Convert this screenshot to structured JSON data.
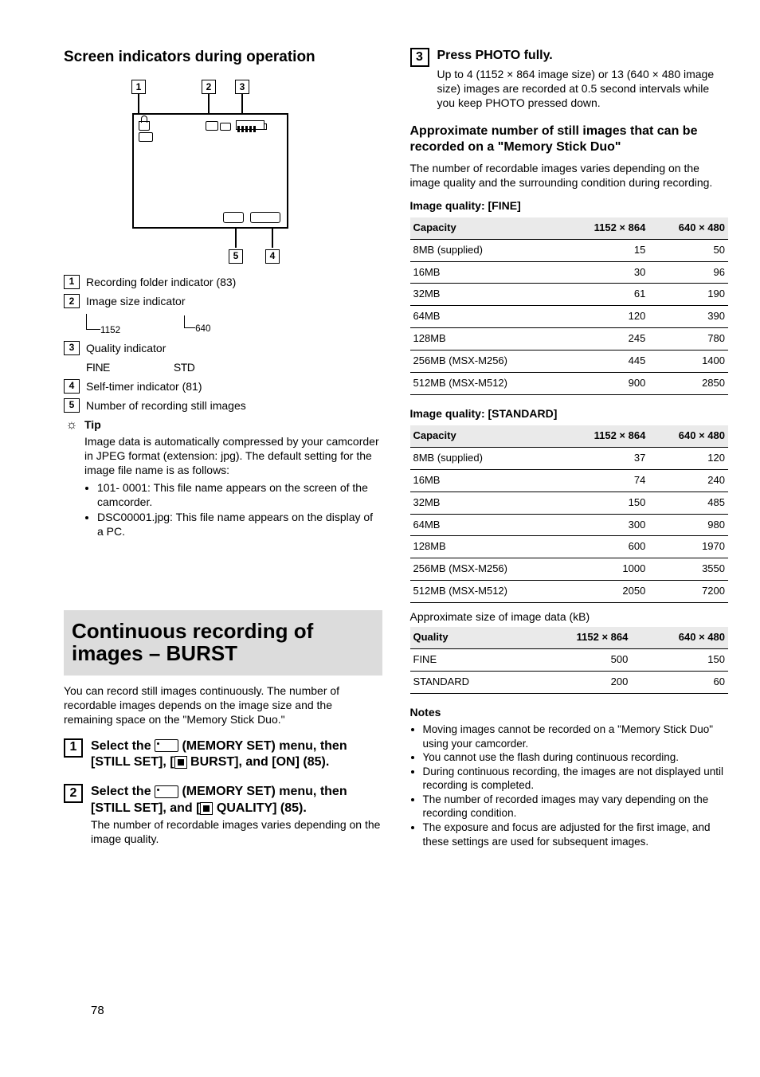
{
  "heading": "Screen indicators during operation",
  "diagram": {
    "callouts": {
      "1": "1",
      "2": "2",
      "3": "3",
      "4": "4",
      "5": "5"
    }
  },
  "list": {
    "1": "Recording folder indicator (83)",
    "2": "Image size indicator",
    "2a": "1152",
    "2b": "640",
    "3": "Quality indicator",
    "3a": "FINE",
    "3b": "STD",
    "4": "Self-timer indicator (81)",
    "5": "Number of recording still images"
  },
  "tip_label": "Tip",
  "tip_body": "Image data is automatically compressed by your camcorder in JPEG format (extension: jpg). The default setting for the image file name is as follows:",
  "tip_bullets": [
    "101- 0001: This file name appears on the screen of the camcorder.",
    "DSC00001.jpg: This file name appears on the display of a PC."
  ],
  "section2_title": "Continuous recording of images – BURST",
  "section2_intro": "You can record still images continuously. The number of recordable images depends on the image size and the remaining space on the \"Memory Stick Duo.\"",
  "steps": [
    {
      "n": "1",
      "bold": "Select the ",
      "icon": "ms",
      "bold2": " (MEMORY SET) menu, then [STILL SET], [",
      "icon2": "sq",
      "bold3": " BURST], and [ON] (85)."
    },
    {
      "n": "2",
      "bold": "Select the ",
      "icon": "ms",
      "bold2": " (MEMORY SET) menu, then [STILL SET], and [",
      "icon2": "sq",
      "bold3": " QUALITY] (85).",
      "desc": "The number of recordable images varies depending on the image quality."
    }
  ],
  "step3": {
    "n": "3",
    "bold": "Press PHOTO fully.",
    "desc": "Up to 4 (1152 × 864 image size) or 13 (640 × 480 image size) images are recorded at 0.5 second intervals while you keep PHOTO pressed down."
  },
  "col2": {
    "h1": "Approximate number of still images that can be recorded on a \"Memory Stick Duo\"",
    "p1": "The number of recordable images varies depending on the image quality and the surrounding condition during recording.",
    "t1_title": "Image quality: [FINE]",
    "t1": {
      "head": [
        "Capacity",
        "1152 × 864",
        "640 × 480"
      ],
      "rows": [
        [
          "8MB (supplied)",
          "15",
          "50"
        ],
        [
          "16MB",
          "30",
          "96"
        ],
        [
          "32MB",
          "61",
          "190"
        ],
        [
          "64MB",
          "120",
          "390"
        ],
        [
          "128MB",
          "245",
          "780"
        ],
        [
          "256MB (MSX-M256)",
          "445",
          "1400"
        ],
        [
          "512MB (MSX-M512)",
          "900",
          "2850"
        ]
      ]
    },
    "t2_title": "Image quality: [STANDARD]",
    "t2": {
      "head": [
        "Capacity",
        "1152 × 864",
        "640 × 480"
      ],
      "rows": [
        [
          "8MB (supplied)",
          "37",
          "120"
        ],
        [
          "16MB",
          "74",
          "240"
        ],
        [
          "32MB",
          "150",
          "485"
        ],
        [
          "64MB",
          "300",
          "980"
        ],
        [
          "128MB",
          "600",
          "1970"
        ],
        [
          "256MB (MSX-M256)",
          "1000",
          "3550"
        ],
        [
          "512MB (MSX-M512)",
          "2050",
          "7200"
        ]
      ]
    },
    "approx": "Approximate size of image data (kB)",
    "t3": {
      "head": [
        "Quality",
        "1152 × 864",
        "640 × 480"
      ],
      "rows": [
        [
          "FINE",
          "500",
          "150"
        ],
        [
          "STANDARD",
          "200",
          "60"
        ]
      ]
    },
    "notes_h": "Notes",
    "notes": [
      "Moving images cannot be recorded on a \"Memory Stick Duo\" using your camcorder.",
      "You cannot use the flash during continuous recording.",
      "During continuous recording, the images are not displayed until recording is completed.",
      "The number of recorded images may vary depending on the recording condition.",
      "The exposure and focus are adjusted for the first image, and these settings are used for subsequent images."
    ]
  },
  "page_number": "78"
}
